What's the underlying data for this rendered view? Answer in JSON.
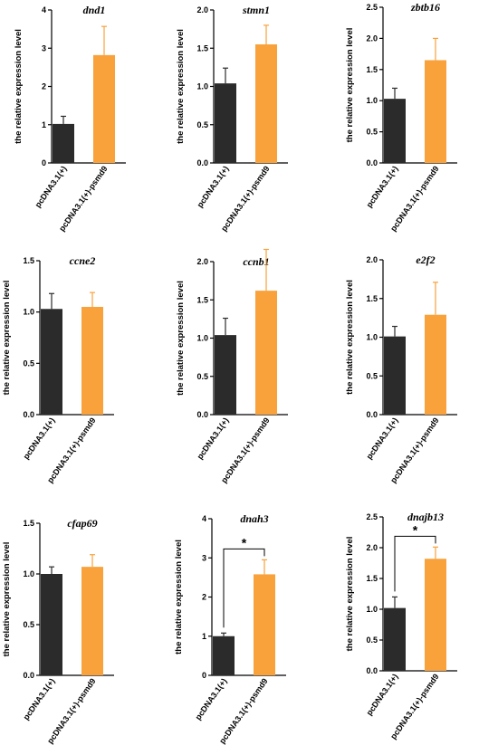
{
  "colors": {
    "dark": "#2b2b2b",
    "orange": "#f9a13a"
  },
  "chart_data": [
    {
      "type": "bar",
      "title": "dnd1",
      "ylabel": "the relative expression level",
      "categories": [
        "pcDNA3.1(+)",
        "pcDNA3.1(+)-psmd9"
      ],
      "values": [
        1.02,
        2.82
      ],
      "errors": [
        0.2,
        0.75
      ],
      "ylim": [
        0,
        4
      ],
      "yticks": [
        "0",
        "1",
        "2",
        "3",
        "4"
      ],
      "significance": ""
    },
    {
      "type": "bar",
      "title": "stmn1",
      "ylabel": "the relative expression level",
      "categories": [
        "pcDNA3.1(+)",
        "pcDNA3.1(+)-psmd9"
      ],
      "values": [
        1.04,
        1.55
      ],
      "errors": [
        0.2,
        0.25
      ],
      "ylim": [
        0,
        2
      ],
      "yticks": [
        "0.0",
        "0.5",
        "1.0",
        "1.5",
        "2.0"
      ],
      "significance": ""
    },
    {
      "type": "bar",
      "title": "zbtb16",
      "ylabel": "the relative expression level",
      "categories": [
        "pcDNA3.1(+)",
        "pcDNA3.1(+)-psmd9"
      ],
      "values": [
        1.03,
        1.65
      ],
      "errors": [
        0.17,
        0.35
      ],
      "ylim": [
        0,
        2.5
      ],
      "yticks": [
        "0.0",
        "0.5",
        "1.0",
        "1.5",
        "2.0",
        "2.5"
      ],
      "significance": ""
    },
    {
      "type": "bar",
      "title": "ccne2",
      "ylabel": "the relative expression level",
      "categories": [
        "pcDNA3.1(+)",
        "pcDNA3.1(+)-psmd9"
      ],
      "values": [
        1.03,
        1.05
      ],
      "errors": [
        0.15,
        0.14
      ],
      "ylim": [
        0,
        1.5
      ],
      "yticks": [
        "0.0",
        "0.5",
        "1.0",
        "1.5"
      ],
      "significance": ""
    },
    {
      "type": "bar",
      "title": "ccnb1",
      "ylabel": "the relative expression level",
      "categories": [
        "pcDNA3.1(+)",
        "pcDNA3.1(+)-psmd9"
      ],
      "values": [
        1.04,
        1.62
      ],
      "errors": [
        0.22,
        0.54
      ],
      "ylim": [
        0,
        2
      ],
      "yticks": [
        "0.0",
        "0.5",
        "1.0",
        "1.5",
        "2.0"
      ],
      "significance": ""
    },
    {
      "type": "bar",
      "title": "e2f2",
      "ylabel": "the relative expression level",
      "categories": [
        "pcDNA3.1(+)",
        "pcDNA3.1(+)-psmd9"
      ],
      "values": [
        1.01,
        1.29
      ],
      "errors": [
        0.13,
        0.42
      ],
      "ylim": [
        0,
        2
      ],
      "yticks": [
        "0.0",
        "0.5",
        "1.0",
        "1.5",
        "2.0"
      ],
      "significance": ""
    },
    {
      "type": "bar",
      "title": "cfap69",
      "ylabel": "the relative expression level",
      "categories": [
        "pcDNA3.1(+)",
        "pcDNA3.1(+)-psmd9"
      ],
      "values": [
        1.0,
        1.07
      ],
      "errors": [
        0.07,
        0.12
      ],
      "ylim": [
        0,
        1.5
      ],
      "yticks": [
        "0.0",
        "0.5",
        "1.0",
        "1.5"
      ],
      "significance": ""
    },
    {
      "type": "bar",
      "title": "dnah3",
      "ylabel": "the relative expression level",
      "categories": [
        "pcDNA3.1(+)",
        "pcDNA3.1(+)-psmd9"
      ],
      "values": [
        1.0,
        2.58
      ],
      "errors": [
        0.08,
        0.37
      ],
      "ylim": [
        0,
        4
      ],
      "yticks": [
        "0",
        "1",
        "2",
        "3",
        "4"
      ],
      "significance": "*"
    },
    {
      "type": "bar",
      "title": "dnajb13",
      "ylabel": "the relative expression level",
      "categories": [
        "pcDNA3.1(+)",
        "pcDNA3.1(+)-psmd9"
      ],
      "values": [
        1.02,
        1.82
      ],
      "errors": [
        0.18,
        0.19
      ],
      "ylim": [
        0,
        2.5
      ],
      "yticks": [
        "0.0",
        "0.5",
        "1.0",
        "1.5",
        "2.0",
        "2.5"
      ],
      "significance": "*"
    }
  ]
}
